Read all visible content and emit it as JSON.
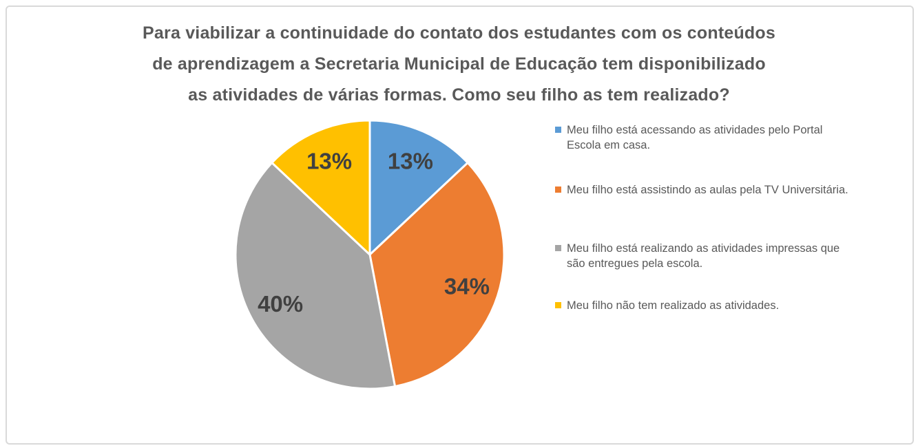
{
  "chart_title": {
    "lines": [
      "Para viabilizar a continuidade do contato dos estudantes com os conteúdos",
      "de aprendizagem a Secretaria Municipal de Educação tem disponibilizado",
      "as atividades de várias formas. Como seu filho as tem realizado?"
    ]
  },
  "chart_data": {
    "type": "pie",
    "title": "Para viabilizar a continuidade do contato dos estudantes com os conteúdos de aprendizagem a Secretaria Municipal de Educação tem disponibilizado as atividades de várias formas. Como seu filho as tem realizado?",
    "unit": "percent",
    "start_angle_deg": 0,
    "direction": "clockwise",
    "legend_position": "right",
    "data_labels": "percent",
    "categories": [
      "Meu filho está acessando as atividades pelo Portal Escola em casa.",
      "Meu filho está assistindo as aulas pela TV Universitária.",
      "Meu filho está realizando as atividades impressas que são entregues pela escola.",
      "Meu filho não tem realizado as atividades."
    ],
    "values": [
      13,
      34,
      40,
      13
    ],
    "slices": [
      {
        "label": "Meu filho está acessando as atividades pelo Portal Escola em casa.",
        "value": 13,
        "pct_label": "13%",
        "color": "#5B9BD5"
      },
      {
        "label": "Meu filho está assistindo as aulas pela TV Universitária.",
        "value": 34,
        "pct_label": "34%",
        "color": "#ED7D31"
      },
      {
        "label": "Meu filho está realizando as atividades impressas que são entregues pela escola.",
        "value": 40,
        "pct_label": "40%",
        "color": "#A5A5A5"
      },
      {
        "label": "Meu filho não tem realizado as atividades.",
        "value": 13,
        "pct_label": "13%",
        "color": "#FFC000"
      }
    ],
    "slice_border_color": "#FFFFFF",
    "data_label_color": "#404040"
  },
  "legend": {
    "items": [
      {
        "lines": [
          "Meu filho está acessando as atividades pelo Portal",
          "Escola em casa."
        ],
        "color": "#5B9BD5"
      },
      {
        "lines": [
          "Meu filho está assistindo as aulas pela TV Universitária."
        ],
        "color": "#ED7D31"
      },
      {
        "lines": [
          "Meu filho está realizando as atividades impressas que",
          "são entregues pela escola."
        ],
        "color": "#A5A5A5"
      },
      {
        "lines": [
          "Meu filho não tem realizado as atividades."
        ],
        "color": "#FFC000"
      }
    ]
  },
  "colors": {
    "background": "#FFFFFF",
    "card_border": "#D9D9D9",
    "title_text": "#595959",
    "legend_text": "#595959"
  }
}
